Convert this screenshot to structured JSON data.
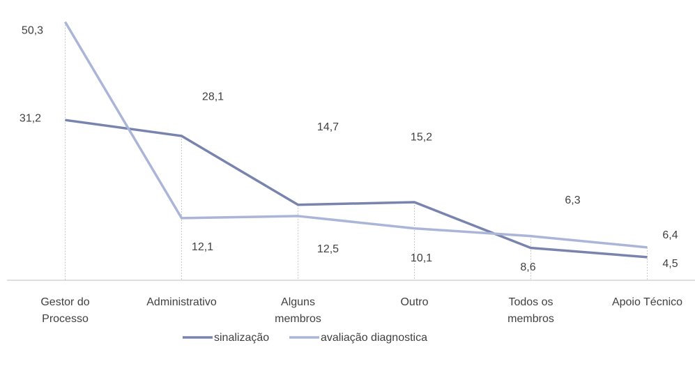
{
  "chart_data": {
    "type": "line",
    "categories": [
      "Gestor do Processo",
      "Administrativo",
      "Alguns membros",
      "Outro",
      "Todos os membros",
      "Apoio Técnico"
    ],
    "series": [
      {
        "name": "sinalização",
        "color": "#7884ae",
        "values": [
          31.2,
          28.1,
          14.7,
          15.2,
          6.3,
          4.5
        ],
        "value_labels": [
          "31,2",
          "28,1",
          "14,7",
          "15,2",
          "6,3",
          "4,5"
        ]
      },
      {
        "name": "avaliação diagnostica",
        "color": "#aab5d8",
        "values": [
          50.3,
          12.1,
          12.5,
          10.1,
          8.6,
          6.4
        ],
        "value_labels": [
          "50,3",
          "12,1",
          "12,5",
          "10,1",
          "8,6",
          "6,4"
        ]
      }
    ],
    "ylim": [
      0,
      52
    ]
  }
}
